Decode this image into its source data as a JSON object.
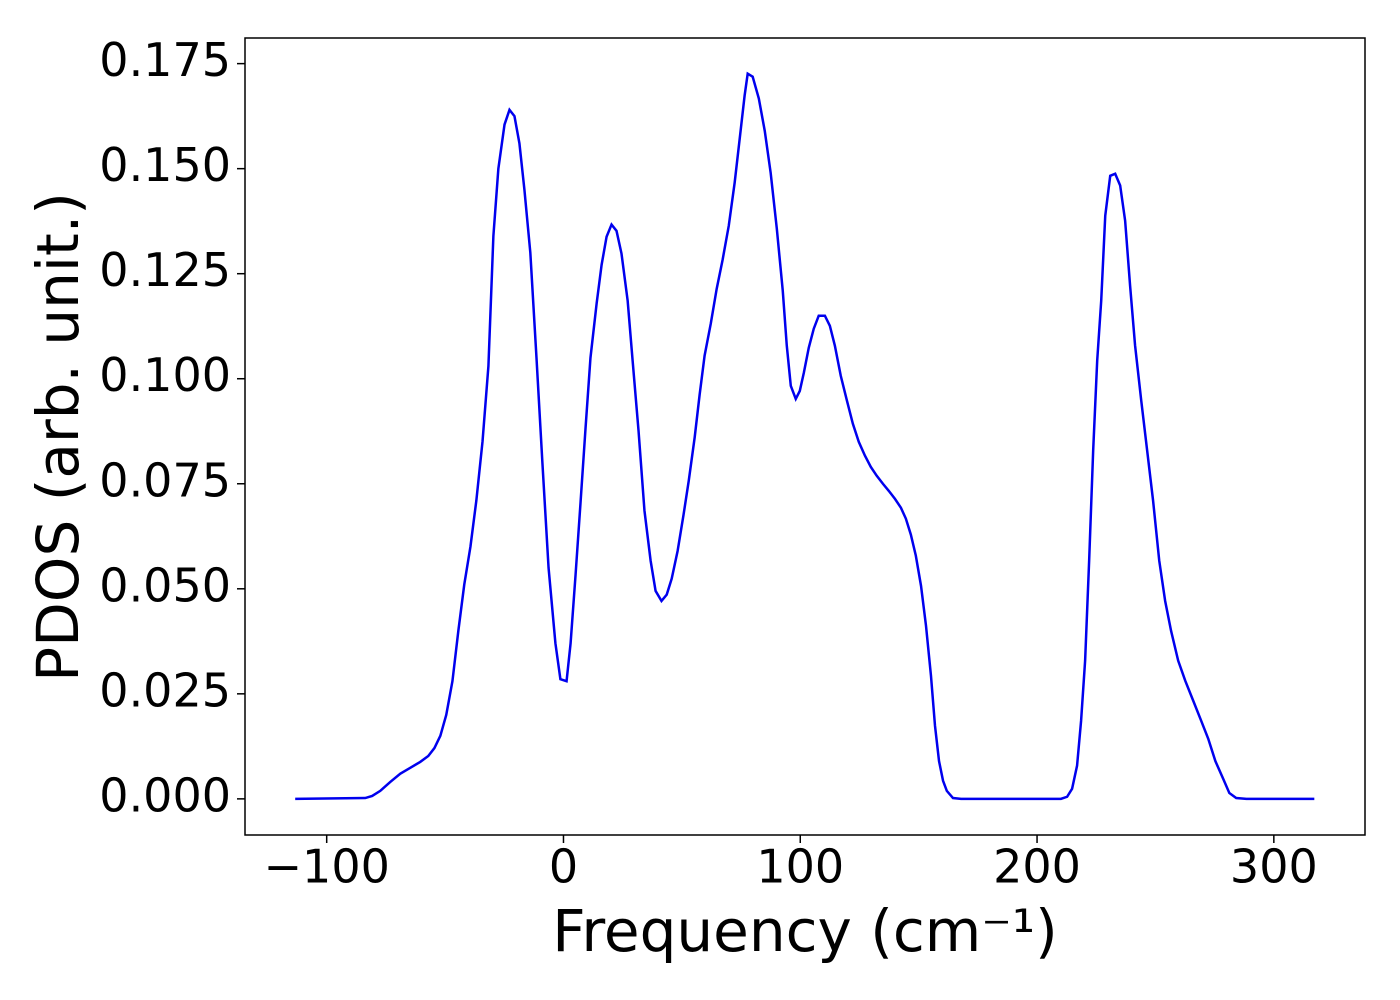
{
  "chart_data": {
    "type": "line",
    "xlabel": "Frequency (cm⁻¹)",
    "ylabel": "PDOS (arb. unit.)",
    "xlim": [
      -134.5,
      338.5
    ],
    "ylim": [
      -0.0086,
      0.1811
    ],
    "xticks": [
      {
        "value": -100,
        "label": "−100"
      },
      0,
      100,
      200,
      300
    ],
    "yticks": [
      {
        "value": 0,
        "label": "0.000"
      },
      0.025,
      {
        "value": 0.05,
        "label": "0.050"
      },
      0.075,
      {
        "value": 0.1,
        "label": "0.100"
      },
      0.125,
      {
        "value": 0.15,
        "label": "0.150"
      },
      0.175
    ],
    "grid": false,
    "series": [
      {
        "color": "#0000ee",
        "x": [
          -113.3,
          -83.7,
          -80.8,
          -77.4,
          -73.2,
          -68.9,
          -64.7,
          -60.5,
          -57.1,
          -54.5,
          -52.0,
          -49.5,
          -46.9,
          -44.4,
          -41.9,
          -39.3,
          -36.8,
          -34.2,
          -31.7,
          -29.6,
          -27.5,
          -24.9,
          -22.8,
          -20.7,
          -18.6,
          -16.5,
          -14.0,
          -11.4,
          -8.9,
          -6.3,
          -3.4,
          -1.3,
          1.3,
          3.0,
          5.1,
          7.2,
          9.3,
          11.4,
          14.0,
          16.1,
          18.2,
          20.3,
          22.4,
          24.5,
          27.1,
          29.2,
          31.7,
          34.2,
          36.8,
          38.9,
          41.4,
          43.6,
          45.7,
          48.2,
          50.7,
          52.9,
          55.4,
          57.5,
          59.6,
          62.2,
          64.7,
          67.2,
          69.8,
          72.3,
          74.8,
          76.5,
          77.8,
          79.9,
          82.5,
          85.0,
          87.5,
          90.1,
          92.6,
          94.3,
          96.0,
          98.1,
          99.8,
          101.5,
          103.6,
          105.7,
          107.8,
          110.4,
          112.5,
          114.6,
          117.1,
          119.7,
          122.2,
          124.7,
          127.3,
          129.8,
          132.3,
          134.9,
          137.4,
          140.0,
          142.5,
          144.6,
          146.7,
          148.8,
          151.0,
          153.1,
          155.2,
          156.9,
          158.6,
          160.3,
          161.9,
          164.5,
          167.9,
          210.1,
          212.7,
          214.8,
          216.9,
          218.6,
          220.3,
          222.0,
          223.7,
          225.4,
          227.1,
          228.8,
          230.9,
          233.0,
          235.1,
          237.2,
          239.3,
          241.4,
          244.0,
          246.5,
          249.0,
          251.6,
          254.1,
          256.6,
          259.6,
          262.6,
          266.0,
          269.3,
          272.3,
          275.3,
          278.6,
          281.2,
          284.1,
          288.4,
          317.1
        ],
        "values": [
          0,
          0.0002,
          0.0007,
          0.0019,
          0.004,
          0.006,
          0.0074,
          0.0088,
          0.0102,
          0.0121,
          0.015,
          0.02,
          0.028,
          0.04,
          0.051,
          0.06,
          0.071,
          0.085,
          0.103,
          0.134,
          0.15,
          0.1605,
          0.164,
          0.1625,
          0.156,
          0.145,
          0.13,
          0.105,
          0.08,
          0.055,
          0.037,
          0.0285,
          0.028,
          0.037,
          0.0533,
          0.0705,
          0.0881,
          0.105,
          0.1179,
          0.1271,
          0.1338,
          0.1367,
          0.1352,
          0.1298,
          0.1186,
          0.1043,
          0.0876,
          0.0686,
          0.0567,
          0.0495,
          0.0471,
          0.0486,
          0.0524,
          0.059,
          0.0676,
          0.0757,
          0.086,
          0.0962,
          0.1055,
          0.1131,
          0.1214,
          0.1283,
          0.1364,
          0.1467,
          0.159,
          0.1674,
          0.1726,
          0.1719,
          0.1667,
          0.159,
          0.149,
          0.1357,
          0.121,
          0.1079,
          0.0983,
          0.0952,
          0.0971,
          0.1014,
          0.1074,
          0.1119,
          0.115,
          0.115,
          0.1126,
          0.1079,
          0.1007,
          0.0948,
          0.0893,
          0.085,
          0.0817,
          0.079,
          0.0769,
          0.075,
          0.0733,
          0.0714,
          0.0693,
          0.0667,
          0.0629,
          0.0579,
          0.0507,
          0.0412,
          0.0293,
          0.0174,
          0.009,
          0.0043,
          0.0019,
          0.0002,
          0,
          0,
          0.0005,
          0.0024,
          0.0079,
          0.0186,
          0.0329,
          0.0567,
          0.0829,
          0.1043,
          0.1186,
          0.1388,
          0.1483,
          0.1488,
          0.146,
          0.1376,
          0.1221,
          0.1079,
          0.0948,
          0.0829,
          0.071,
          0.0567,
          0.0471,
          0.04,
          0.0329,
          0.0281,
          0.0233,
          0.0186,
          0.0143,
          0.009,
          0.0048,
          0.0014,
          0.0002,
          0,
          0
        ]
      }
    ]
  }
}
